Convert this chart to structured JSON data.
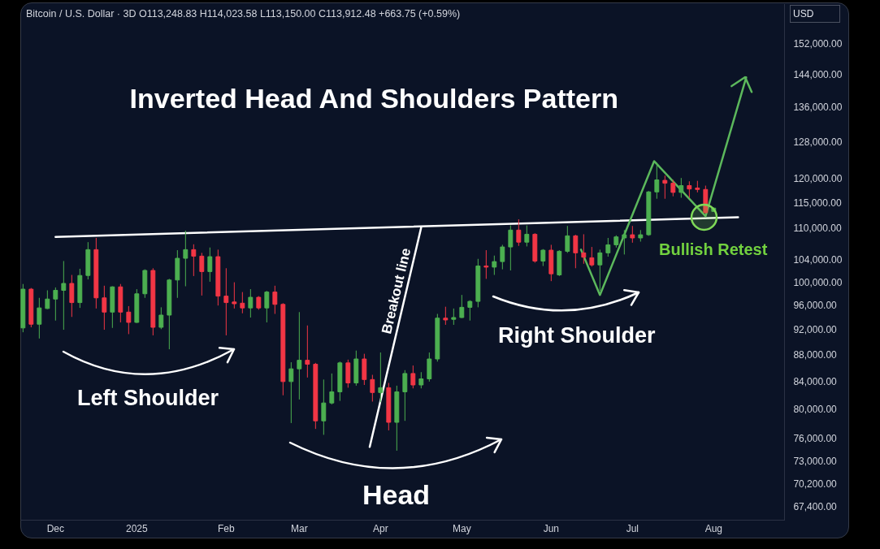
{
  "chart_data": {
    "type": "candlestick",
    "title": "Inverted Head And Shoulders Pattern",
    "subtitle": "Bitcoin / U.S. Dollar · 3D O113,248.83 H114,023.58 L113,150.00 C113,912.48 +663.75 (+0.59%)",
    "ylabel": "USD",
    "annotations": [
      "Left Shoulder",
      "Head",
      "Right Shoulder",
      "Bullish Retest"
    ],
    "x": [
      "2024-11-20",
      "2024-11-23",
      "2024-11-26",
      "2024-11-29",
      "2024-12-02",
      "2024-12-05",
      "2024-12-08",
      "2024-12-11",
      "2024-12-14",
      "2024-12-17",
      "2024-12-20",
      "2024-12-23",
      "2024-12-26",
      "2024-12-29",
      "2025-01-01",
      "2025-01-04",
      "2025-01-07",
      "2025-01-10",
      "2025-01-13",
      "2025-01-16",
      "2025-01-19",
      "2025-01-22",
      "2025-01-25",
      "2025-01-28",
      "2025-01-31",
      "2025-02-03",
      "2025-02-06",
      "2025-02-09",
      "2025-02-12",
      "2025-02-15",
      "2025-02-18",
      "2025-02-21",
      "2025-02-24",
      "2025-02-27",
      "2025-03-02",
      "2025-03-05",
      "2025-03-08",
      "2025-03-11",
      "2025-03-14",
      "2025-03-17",
      "2025-03-20",
      "2025-03-23",
      "2025-03-26",
      "2025-03-29",
      "2025-04-01",
      "2025-04-04",
      "2025-04-07",
      "2025-04-10",
      "2025-04-13",
      "2025-04-16",
      "2025-04-19",
      "2025-04-22",
      "2025-04-25",
      "2025-04-28",
      "2025-05-01",
      "2025-05-04",
      "2025-05-07",
      "2025-05-10",
      "2025-05-13",
      "2025-05-16",
      "2025-05-19",
      "2025-05-22",
      "2025-05-25",
      "2025-05-28",
      "2025-05-31",
      "2025-06-03",
      "2025-06-06",
      "2025-06-09",
      "2025-06-12",
      "2025-06-15",
      "2025-06-18",
      "2025-06-21",
      "2025-06-24",
      "2025-06-27",
      "2025-06-30",
      "2025-07-03",
      "2025-07-06",
      "2025-07-09",
      "2025-07-12",
      "2025-07-15",
      "2025-07-18",
      "2025-07-21",
      "2025-07-24",
      "2025-07-27",
      "2025-07-30",
      "2025-08-02"
    ],
    "ohlc": [
      [
        92300,
        99700,
        91600,
        98800
      ],
      [
        98800,
        99000,
        92400,
        92900
      ],
      [
        92900,
        97300,
        90600,
        95600
      ],
      [
        95500,
        98600,
        95400,
        97100
      ],
      [
        97100,
        99100,
        93500,
        98600
      ],
      [
        98600,
        103800,
        92000,
        99800
      ],
      [
        99800,
        101300,
        94100,
        96500
      ],
      [
        96500,
        102400,
        95600,
        101200
      ],
      [
        101200,
        107300,
        100500,
        105900
      ],
      [
        105900,
        108100,
        95500,
        97300
      ],
      [
        97300,
        99400,
        92000,
        94900
      ],
      [
        94900,
        99300,
        92300,
        99200
      ],
      [
        99200,
        99700,
        93200,
        94900
      ],
      [
        94900,
        95900,
        91300,
        93200
      ],
      [
        93200,
        98800,
        93100,
        98000
      ],
      [
        98000,
        102300,
        97300,
        102100
      ],
      [
        102100,
        102500,
        91100,
        92400
      ],
      [
        92400,
        95700,
        92100,
        94400
      ],
      [
        94400,
        100600,
        88900,
        100400
      ],
      [
        100400,
        105800,
        97300,
        104300
      ],
      [
        104300,
        109500,
        99300,
        105900
      ],
      [
        105900,
        106900,
        101100,
        104700
      ],
      [
        104700,
        105300,
        97700,
        101900
      ],
      [
        101900,
        106300,
        100100,
        104600
      ],
      [
        104600,
        105900,
        96000,
        97600
      ],
      [
        97600,
        102500,
        91100,
        96500
      ],
      [
        96600,
        100000,
        95500,
        96300
      ],
      [
        96400,
        98300,
        94700,
        95600
      ],
      [
        95600,
        98800,
        94000,
        97400
      ],
      [
        97400,
        97600,
        95300,
        95600
      ],
      [
        95600,
        98500,
        93200,
        98300
      ],
      [
        98300,
        99400,
        94600,
        96200
      ],
      [
        96200,
        96400,
        82000,
        84000
      ],
      [
        84000,
        86900,
        78100,
        85900
      ],
      [
        85900,
        94900,
        81400,
        87200
      ],
      [
        87200,
        92700,
        84600,
        86600
      ],
      [
        86600,
        86800,
        77300,
        78400
      ],
      [
        78400,
        84300,
        76500,
        80900
      ],
      [
        80900,
        85200,
        80700,
        82500
      ],
      [
        82500,
        87000,
        81200,
        86800
      ],
      [
        86800,
        87300,
        83100,
        83800
      ],
      [
        83800,
        88700,
        83400,
        87400
      ],
      [
        87400,
        88200,
        83500,
        84300
      ],
      [
        84300,
        85000,
        81100,
        82400
      ],
      [
        82400,
        88400,
        81000,
        83100
      ],
      [
        83100,
        83800,
        77100,
        78200
      ],
      [
        78200,
        83400,
        74400,
        82500
      ],
      [
        82500,
        85700,
        78400,
        85200
      ],
      [
        85200,
        86400,
        83000,
        83500
      ],
      [
        83500,
        85400,
        83000,
        84400
      ],
      [
        84400,
        88400,
        84000,
        87400
      ],
      [
        87400,
        94600,
        87000,
        93900
      ],
      [
        93900,
        95800,
        92800,
        93600
      ],
      [
        93700,
        95500,
        92800,
        94000
      ],
      [
        94000,
        97800,
        93900,
        95700
      ],
      [
        95700,
        96900,
        93500,
        96700
      ],
      [
        96700,
        104200,
        95700,
        102900
      ],
      [
        102900,
        105800,
        100600,
        102700
      ],
      [
        102700,
        104800,
        101300,
        103700
      ],
      [
        103700,
        106800,
        102300,
        106400
      ],
      [
        106400,
        110500,
        102100,
        109600
      ],
      [
        109600,
        111700,
        106600,
        107300
      ],
      [
        107300,
        110500,
        106500,
        108800
      ],
      [
        108800,
        109000,
        103500,
        103800
      ],
      [
        103800,
        106000,
        102900,
        105800
      ],
      [
        105800,
        106800,
        100200,
        101500
      ],
      [
        101300,
        105800,
        101100,
        105600
      ],
      [
        105600,
        110400,
        105300,
        108500
      ],
      [
        108500,
        108700,
        102500,
        105300
      ],
      [
        105300,
        108800,
        103300,
        104500
      ],
      [
        104400,
        106400,
        102800,
        103100
      ],
      [
        103100,
        105900,
        98500,
        105300
      ],
      [
        105300,
        108100,
        104600,
        106800
      ],
      [
        106800,
        108600,
        106300,
        108300
      ],
      [
        108100,
        109600,
        105000,
        108700
      ],
      [
        108700,
        110400,
        107200,
        108100
      ],
      [
        108100,
        109600,
        107400,
        108700
      ],
      [
        108700,
        117400,
        108500,
        117200
      ],
      [
        117200,
        123400,
        115800,
        119700
      ],
      [
        119600,
        120600,
        115800,
        119000
      ],
      [
        119000,
        119700,
        116300,
        117100
      ],
      [
        117100,
        120100,
        116000,
        118500
      ],
      [
        118500,
        119400,
        116000,
        117800
      ],
      [
        118000,
        119500,
        117100,
        117700
      ],
      [
        117700,
        118500,
        112800,
        113000
      ],
      [
        113248.83,
        114023.58,
        113150,
        113912.48
      ]
    ],
    "colors": [
      "#4caf50",
      "#f23645",
      "#4caf50",
      "#4caf50",
      "#4caf50",
      "#4caf50",
      "#f23645",
      "#4caf50",
      "#4caf50",
      "#f23645",
      "#f23645",
      "#4caf50",
      "#f23645",
      "#f23645",
      "#4caf50",
      "#4caf50",
      "#f23645",
      "#4caf50",
      "#4caf50",
      "#4caf50",
      "#4caf50",
      "#f23645",
      "#f23645",
      "#4caf50",
      "#f23645",
      "#f23645",
      "#f23645",
      "#f23645",
      "#4caf50",
      "#f23645",
      "#4caf50",
      "#f23645",
      "#f23645",
      "#4caf50",
      "#4caf50",
      "#f23645",
      "#f23645",
      "#4caf50",
      "#4caf50",
      "#4caf50",
      "#f23645",
      "#4caf50",
      "#f23645",
      "#f23645",
      "#4caf50",
      "#f23645",
      "#4caf50",
      "#4caf50",
      "#f23645",
      "#4caf50",
      "#4caf50",
      "#4caf50",
      "#f23645",
      "#4caf50",
      "#4caf50",
      "#4caf50",
      "#4caf50",
      "#f23645",
      "#4caf50",
      "#4caf50",
      "#4caf50",
      "#f23645",
      "#4caf50",
      "#f23645",
      "#4caf50",
      "#f23645",
      "#4caf50",
      "#4caf50",
      "#f23645",
      "#f23645",
      "#f23645",
      "#4caf50",
      "#4caf50",
      "#4caf50",
      "#4caf50",
      "#f23645",
      "#4caf50",
      "#4caf50",
      "#4caf50",
      "#f23645",
      "#f23645",
      "#4caf50",
      "#f23645",
      "#f23645",
      "#f23645",
      "#4caf50"
    ],
    "series": [
      {
        "type": "line",
        "color": "#ffffff",
        "x": [
          "2024-12-02",
          "2025-08-11"
        ],
        "values": [
          108300,
          112100
        ]
      },
      {
        "type": "line",
        "name": "Breakout line",
        "color": "#ffffff",
        "x": [
          "2025-03-28",
          "2025-04-16"
        ],
        "values": [
          74900,
          110100
        ]
      },
      {
        "type": "line",
        "color": "#5cb85c",
        "x": [
          "2025-06-14",
          "2025-06-21",
          "2025-07-11",
          "2025-07-30",
          "2025-08-14"
        ],
        "values": [
          105900,
          97800,
          123700,
          112300,
          143300
        ]
      }
    ],
    "xlim": [
      "2024-11-19",
      "2025-08-28"
    ],
    "ylim": [
      65900,
      163000
    ],
    "log": true,
    "xticks": [
      {
        "value": "2024-12-02",
        "label": "Dec"
      },
      {
        "value": "2025-01-01",
        "label": "2025"
      },
      {
        "value": "2025-02-03",
        "label": "Feb"
      },
      {
        "value": "2025-03-02",
        "label": "Mar"
      },
      {
        "value": "2025-04-01",
        "label": "Apr"
      },
      {
        "value": "2025-05-01",
        "label": "May"
      },
      {
        "value": "2025-06-03",
        "label": "Jun"
      },
      {
        "value": "2025-07-03",
        "label": "Jul"
      },
      {
        "value": "2025-08-02",
        "label": "Aug"
      }
    ],
    "yticks": [
      {
        "value": 152000,
        "label": "152,000.00"
      },
      {
        "value": 144000,
        "label": "144,000.00"
      },
      {
        "value": 136000,
        "label": "136,000.00"
      },
      {
        "value": 128000,
        "label": "128,000.00"
      },
      {
        "value": 120000,
        "label": "120,000.00"
      },
      {
        "value": 115000,
        "label": "115,000.00"
      },
      {
        "value": 110000,
        "label": "110,000.00"
      },
      {
        "value": 104000,
        "label": "104,000.00"
      },
      {
        "value": 100000,
        "label": "100,000.00"
      },
      {
        "value": 96000,
        "label": "96,000.00"
      },
      {
        "value": 92000,
        "label": "92,000.00"
      },
      {
        "value": 88000,
        "label": "88,000.00"
      },
      {
        "value": 84000,
        "label": "84,000.00"
      },
      {
        "value": 80000,
        "label": "80,000.00"
      },
      {
        "value": 76000,
        "label": "76,000.00"
      },
      {
        "value": 73000,
        "label": "73,000.00"
      },
      {
        "value": 70200,
        "label": "70,200.00"
      },
      {
        "value": 67400,
        "label": "67,400.00"
      }
    ]
  }
}
